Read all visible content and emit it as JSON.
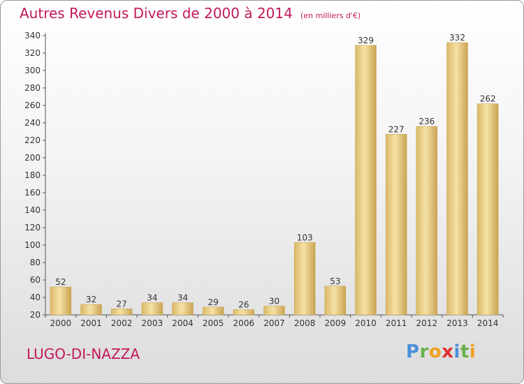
{
  "title": "Autres Revenus Divers de 2000 à 2014",
  "unit": "(en milliers d'€)",
  "commune": "LUGO-DI-NAZZA",
  "logo": {
    "letters": [
      "P",
      "r",
      "o",
      "x",
      "i",
      "t",
      "i"
    ],
    "colors": [
      "#4a90d9",
      "#6ab04c",
      "#f0a020",
      "#e03030",
      "#4a90d9",
      "#6ab04c",
      "#f0a020"
    ]
  },
  "chart_data": {
    "type": "bar",
    "categories": [
      "2000",
      "2001",
      "2002",
      "2003",
      "2004",
      "2005",
      "2006",
      "2007",
      "2008",
      "2009",
      "2010",
      "2011",
      "2012",
      "2013",
      "2014"
    ],
    "values": [
      52,
      32,
      27,
      34,
      34,
      29,
      26,
      30,
      103,
      53,
      329,
      227,
      236,
      332,
      262
    ],
    "ylim": [
      20,
      340
    ],
    "yticks": [
      20,
      40,
      60,
      80,
      100,
      120,
      140,
      160,
      180,
      200,
      220,
      240,
      260,
      280,
      300,
      320,
      340
    ],
    "grid": false,
    "bar_color": "#e8c97a"
  }
}
